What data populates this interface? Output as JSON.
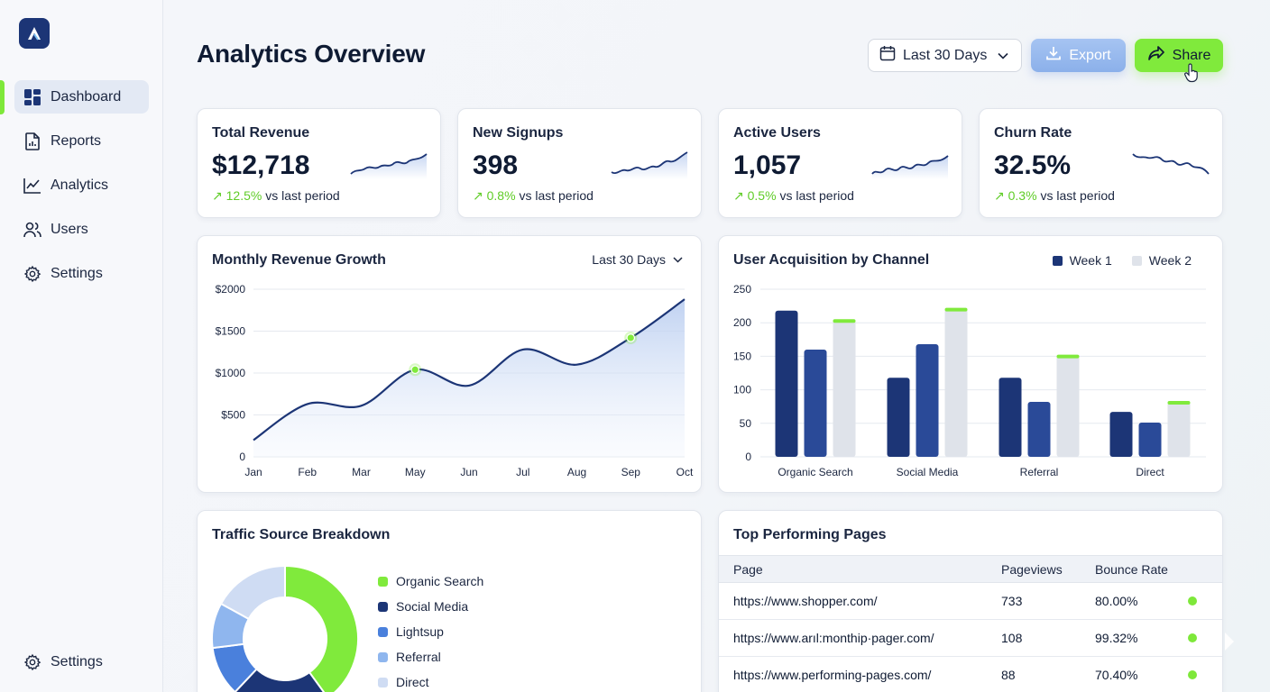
{
  "app": {
    "title": "Analytics Overview",
    "logo_icon": "logo-a-icon",
    "accent": "#7ee83a",
    "brand": "#1c3576"
  },
  "sidebar": {
    "items": [
      {
        "label": "Dashboard",
        "icon": "dashboard-icon",
        "active": true
      },
      {
        "label": "Reports",
        "icon": "document-icon"
      },
      {
        "label": "Analytics",
        "icon": "line-chart-icon"
      },
      {
        "label": "Users",
        "icon": "users-icon"
      },
      {
        "label": "Settings",
        "icon": "gear-icon"
      }
    ],
    "footer": {
      "label": "Settings",
      "icon": "gear-icon"
    }
  },
  "header": {
    "date_range": "Last 30 Days",
    "export_label": "Export",
    "share_label": "Share"
  },
  "kpis": [
    {
      "title": "Total Revenue",
      "value": "$12,718",
      "delta": "12.5%",
      "suffix": "vs last period"
    },
    {
      "title": "New Signups",
      "value": "398",
      "delta": "0.8%",
      "suffix": "vs last period"
    },
    {
      "title": "Active Users",
      "value": "1,057",
      "delta": "0.5%",
      "suffix": "vs last period"
    },
    {
      "title": "Churn Rate",
      "value": "32.5%",
      "delta": "0.3%",
      "suffix": "vs last period"
    }
  ],
  "revenue_chart": {
    "title": "Monthly Revenue Growth",
    "range_label": "Last 30 Days",
    "y_ticks": [
      "$2000",
      "$1500",
      "$1000",
      "$500",
      "0"
    ],
    "x_ticks": [
      "Jan",
      "Feb",
      "Mar",
      "May",
      "Jun",
      "Jul",
      "Aug",
      "Sep",
      "Oct"
    ]
  },
  "acquisition_chart": {
    "title": "User Acquisition by Channel",
    "legend": [
      {
        "name": "Week 1",
        "color": "#1c3576"
      },
      {
        "name": "Week 2",
        "color": "#dfe3ea"
      }
    ],
    "y_ticks": [
      "250",
      "200",
      "150",
      "100",
      "50",
      "0"
    ],
    "categories": [
      "Organic Search",
      "Social Media",
      "Referral",
      "Direct"
    ]
  },
  "traffic_chart": {
    "title": "Traffic Source Breakdown",
    "legend": [
      {
        "name": "Organic Search",
        "color": "#80ea3c"
      },
      {
        "name": "Social Media",
        "color": "#1c3576"
      },
      {
        "name": "Lightsup",
        "color": "#4a80dc"
      },
      {
        "name": "Referral",
        "color": "#8fb6ee"
      },
      {
        "name": "Direct",
        "color": "#cfdcf3"
      }
    ]
  },
  "top_pages": {
    "title": "Top Performing Pages",
    "columns": [
      "Page",
      "Pageviews",
      "Bounce Rate"
    ],
    "rows": [
      {
        "page": "https://www.shopper.com/",
        "pageviews": "733",
        "bounce": "80.00%"
      },
      {
        "page": "https://www.arıl:monthip·pager.com/",
        "pageviews": "108",
        "bounce": "99.32%"
      },
      {
        "page": "https://www.performing-pages.com/",
        "pageviews": "88",
        "bounce": "70.40%"
      }
    ]
  },
  "chart_data": [
    {
      "type": "line",
      "title": "Monthly Revenue Growth",
      "x": [
        "Jan",
        "Feb",
        "Mar",
        "May",
        "Jun",
        "Jul",
        "Aug",
        "Sep",
        "Oct"
      ],
      "series": [
        {
          "values": [
            200,
            630,
            610,
            1040,
            850,
            1280,
            1100,
            1420,
            1880
          ]
        }
      ],
      "highlighted": [
        "May",
        "Sep"
      ],
      "ylim": [
        0,
        2000
      ],
      "grid": true
    },
    {
      "type": "bar",
      "title": "User Acquisition by Channel",
      "categories": [
        "Organic Search",
        "Social Media",
        "Referral",
        "Direct"
      ],
      "series": [
        {
          "name": "Week 1",
          "values": [
            218,
            118,
            118,
            67
          ]
        },
        {
          "values": [
            160,
            168,
            82,
            51
          ]
        },
        {
          "name": "Week 2",
          "values": [
            204,
            221,
            151,
            82
          ]
        }
      ],
      "ylim": [
        0,
        250
      ],
      "legend": "top-right",
      "grid": true
    },
    {
      "type": "pie",
      "title": "Traffic Source Breakdown",
      "labels": [
        "Organic Search",
        "Social Media",
        "Lightsup",
        "Referral",
        "Direct"
      ],
      "values": [
        40,
        22,
        11,
        10,
        17
      ],
      "donut": true
    }
  ]
}
